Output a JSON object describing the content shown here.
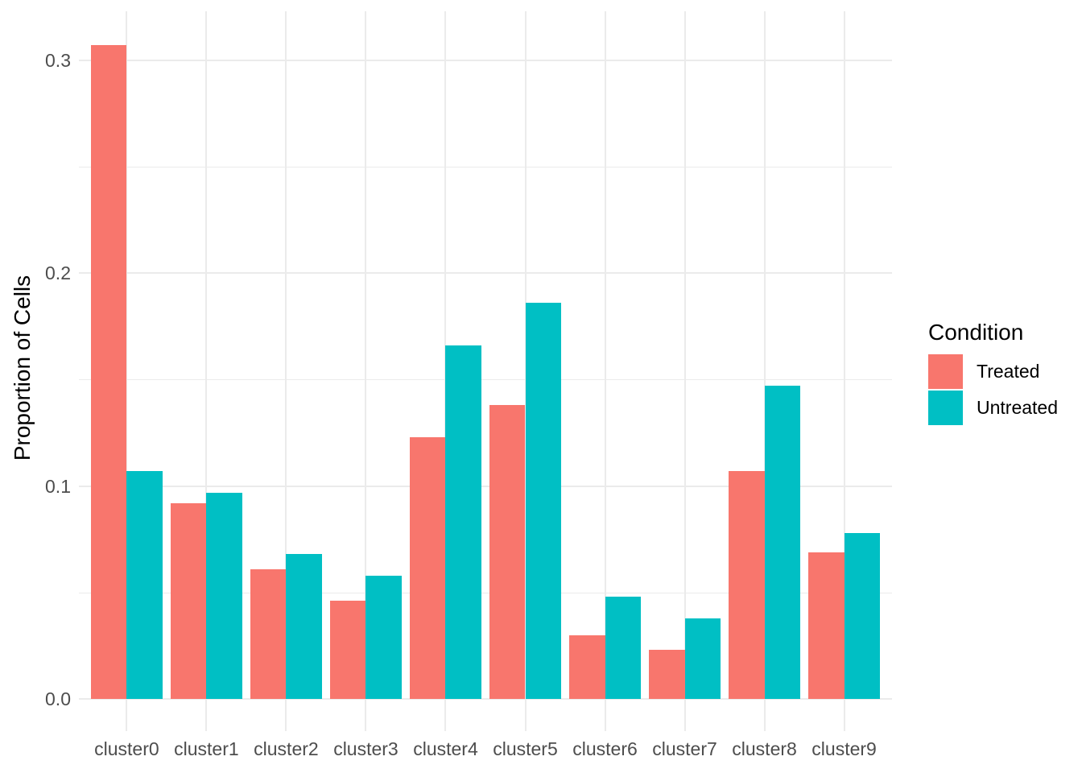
{
  "chart_data": {
    "type": "bar",
    "title": "",
    "xlabel": "",
    "ylabel": "Proportion of Cells",
    "categories": [
      "cluster0",
      "cluster1",
      "cluster2",
      "cluster3",
      "cluster4",
      "cluster5",
      "cluster6",
      "cluster7",
      "cluster8",
      "cluster9"
    ],
    "series": [
      {
        "name": "Treated",
        "color": "#F8766D",
        "values": [
          0.307,
          0.092,
          0.061,
          0.046,
          0.123,
          0.138,
          0.03,
          0.023,
          0.107,
          0.069
        ]
      },
      {
        "name": "Untreated",
        "color": "#00BFC4",
        "values": [
          0.107,
          0.097,
          0.068,
          0.058,
          0.166,
          0.186,
          0.048,
          0.038,
          0.147,
          0.078
        ]
      }
    ],
    "y_ticks": [
      0.0,
      0.1,
      0.2,
      0.3
    ],
    "y_tick_labels": [
      "0.0",
      "0.1",
      "0.2",
      "0.3"
    ],
    "y_minor_ticks": [
      0.05,
      0.15,
      0.25
    ],
    "ylim": [
      0,
      0.323
    ],
    "grid": true,
    "legend": {
      "title": "Condition",
      "position": "right",
      "entries": [
        "Treated",
        "Untreated"
      ]
    },
    "colors": {
      "treated": "#F8766D",
      "untreated": "#00BFC4",
      "gridline": "#EBEBEB",
      "tick_text": "#4D4D4D",
      "axis_title_text": "#000000",
      "background": "#FFFFFF"
    }
  }
}
